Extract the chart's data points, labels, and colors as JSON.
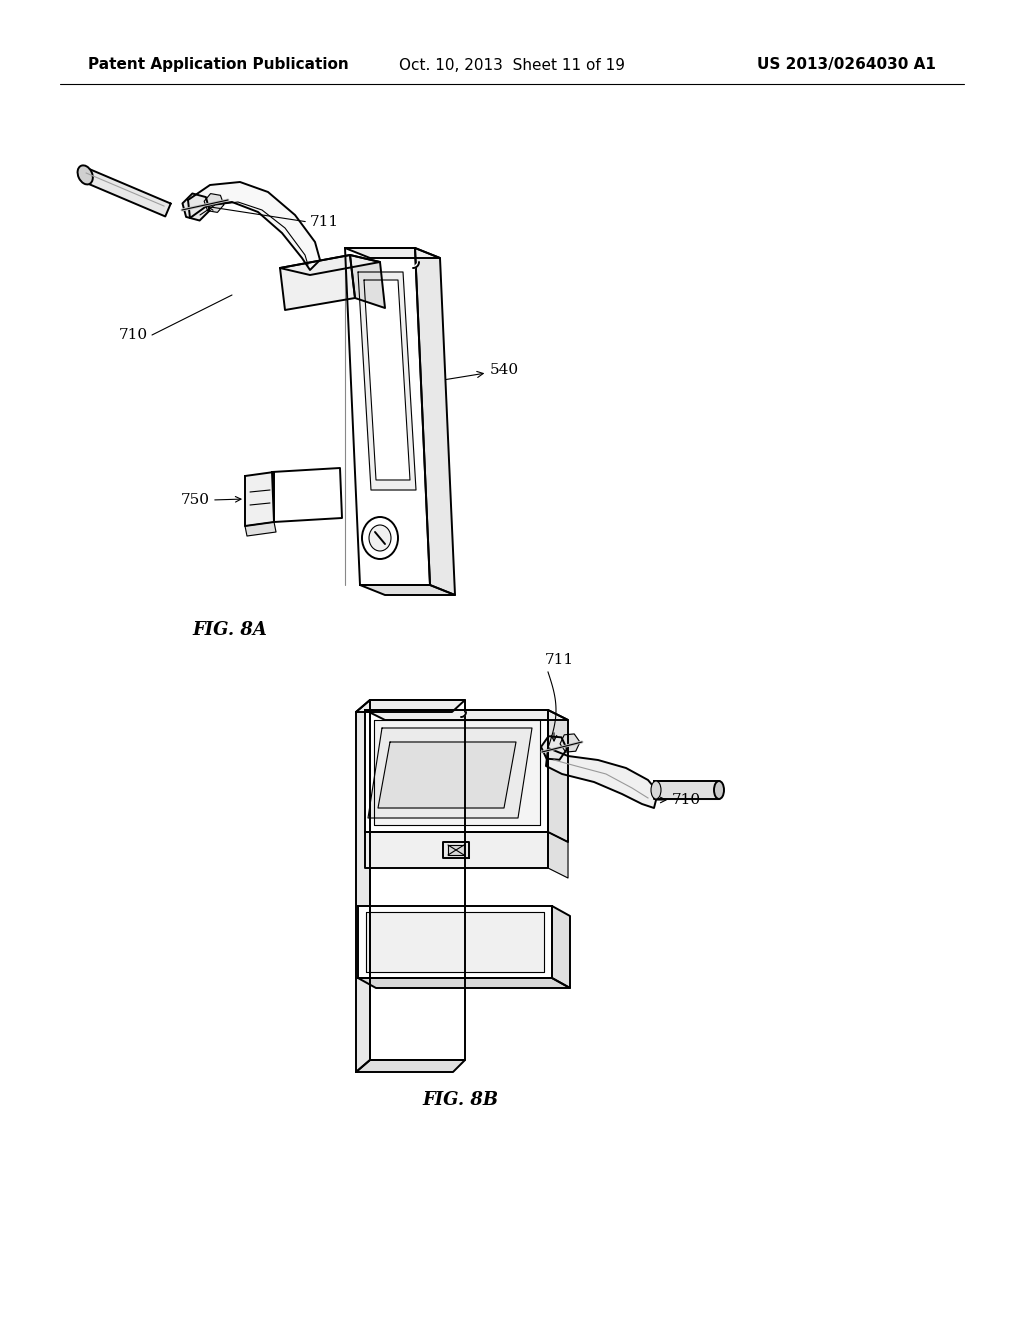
{
  "background_color": "#ffffff",
  "header_left": "Patent Application Publication",
  "header_center": "Oct. 10, 2013  Sheet 11 of 19",
  "header_right": "US 2013/0264030 A1",
  "fig8a_label": "FIG. 8A",
  "fig8b_label": "FIG. 8B",
  "lc": "#000000",
  "lw": 1.4,
  "lw_thin": 0.8,
  "fs_header": 11,
  "fs_label": 11,
  "fs_fig": 13
}
